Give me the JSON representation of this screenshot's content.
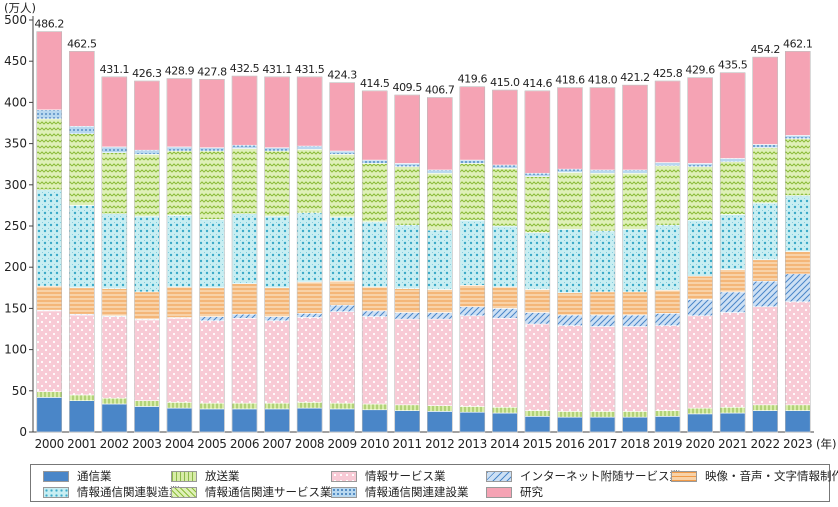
{
  "chart_data": {
    "type": "bar",
    "stacked": true,
    "unit_label": "(万人)",
    "x_unit_label": "(年)",
    "ylim": [
      0,
      500
    ],
    "yticks": [
      0,
      50,
      100,
      150,
      200,
      250,
      300,
      350,
      400,
      450,
      500
    ],
    "grid": false,
    "legend_position": "bottom",
    "categories": [
      "2000",
      "2001",
      "2002",
      "2003",
      "2004",
      "2005",
      "2006",
      "2007",
      "2008",
      "2009",
      "2010",
      "2011",
      "2012",
      "2013",
      "2014",
      "2015",
      "2016",
      "2017",
      "2018",
      "2019",
      "2020",
      "2021",
      "2022",
      "2023"
    ],
    "totals": [
      "486.2",
      "462.5",
      "431.1",
      "426.3",
      "428.9",
      "427.8",
      "432.5",
      "431.1",
      "431.5",
      "424.3",
      "414.5",
      "409.5",
      "406.7",
      "419.6",
      "415.0",
      "414.6",
      "418.6",
      "418.0",
      "421.2",
      "425.8",
      "429.6",
      "435.5",
      "454.2",
      "462.1"
    ],
    "series": [
      {
        "name": "通信業",
        "color": "#4a86c8",
        "pattern": "solid",
        "values": [
          42,
          38,
          34,
          31,
          29,
          28,
          28,
          28,
          29,
          28,
          27,
          26,
          25,
          24,
          23,
          19,
          18,
          18,
          18,
          19,
          22,
          23,
          26,
          26
        ]
      },
      {
        "name": "放送業",
        "color": "#d8eca8",
        "pattern": "vlines",
        "values": [
          7,
          7,
          7,
          7,
          7,
          7,
          7,
          7,
          7,
          7,
          7,
          7,
          7,
          7,
          7,
          7,
          7,
          7,
          7,
          7,
          7,
          7,
          7,
          7
        ]
      },
      {
        "name": "情報サービス業",
        "color": "#f8cad5",
        "pattern": "dots",
        "values": [
          98,
          97,
          99,
          98,
          102,
          100,
          103,
          100,
          103,
          111,
          106,
          104,
          105,
          110,
          108,
          105,
          104,
          103,
          103,
          103,
          112,
          115,
          119,
          125
        ]
      },
      {
        "name": "インターネット附随サービス業",
        "color": "#cde0f4",
        "pattern": "diag",
        "values": [
          1,
          1,
          1,
          1,
          1,
          5,
          5,
          5,
          5,
          8,
          7,
          8,
          8,
          11,
          12,
          14,
          13,
          14,
          14,
          15,
          20,
          25,
          31,
          34
        ]
      },
      {
        "name": "映像・音声・文字情報制作業",
        "color": "#f8d2a8",
        "pattern": "hlines",
        "values": [
          29,
          32,
          33,
          33,
          37,
          35,
          37,
          35,
          38,
          29,
          29,
          29,
          28,
          26,
          26,
          28,
          27,
          28,
          28,
          28,
          28,
          27,
          26,
          27
        ]
      },
      {
        "name": "情報通信関連製造業",
        "color": "#c8eef2",
        "pattern": "cross",
        "values": [
          117,
          100,
          91,
          92,
          87,
          83,
          85,
          87,
          84,
          78,
          79,
          77,
          72,
          79,
          74,
          69,
          77,
          74,
          76,
          79,
          68,
          67,
          69,
          68
        ]
      },
      {
        "name": "情報通信関連サービス業",
        "color": "#dff0b8",
        "pattern": "zigzag",
        "values": [
          86,
          87,
          74,
          75,
          78,
          83,
          79,
          79,
          77,
          76,
          71,
          71,
          69,
          69,
          70,
          68,
          69,
          70,
          68,
          72,
          65,
          64,
          67,
          69
        ]
      },
      {
        "name": "情報通信関連建設業",
        "color": "#b8d8f0",
        "pattern": "smalldots",
        "values": [
          11,
          9,
          7,
          5,
          5,
          4,
          4,
          4,
          4,
          4,
          4,
          4,
          4,
          4,
          4,
          4,
          4,
          4,
          4,
          4,
          4,
          4,
          4,
          4
        ]
      },
      {
        "name": "研究",
        "color": "#f5a3b4",
        "pattern": "solid",
        "values": [
          95,
          91,
          85,
          84,
          83,
          83,
          84,
          86,
          84,
          83,
          84,
          83,
          88,
          89,
          91,
          100,
          99,
          100,
          103,
          99,
          104,
          104,
          106,
          102
        ]
      }
    ]
  }
}
